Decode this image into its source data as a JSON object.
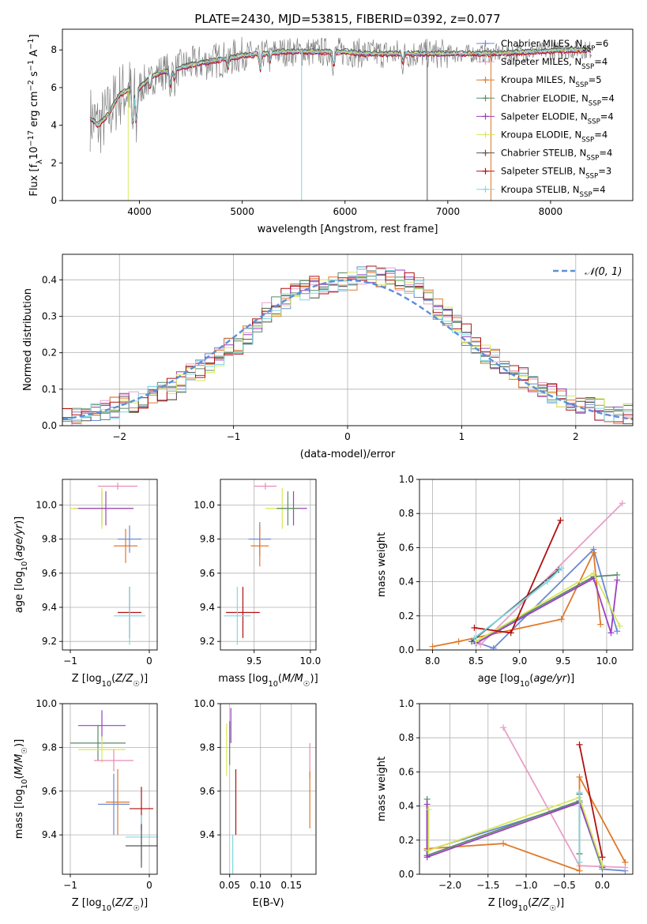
{
  "figure_title": "PLATE=2430, MJD=53815, FIBERID=0392, z=0.077",
  "colors": {
    "Chabrier MILES": "#6a89d6",
    "Salpeter MILES": "#e8a0c8",
    "Kroupa MILES": "#e0792a",
    "Chabrier ELODIE": "#5a8a6a",
    "Salpeter ELODIE": "#9b3fbf",
    "Kroupa ELODIE": "#d8e85a",
    "Chabrier STELIB": "#555555",
    "Salpeter STELIB": "#b01010",
    "Kroupa STELIB": "#7fd8e0",
    "gaussian": "#5b8fd8",
    "pink": "#e88ab8"
  },
  "chart_data": [
    {
      "type": "line",
      "xlabel": "wavelength [Angstrom, rest frame]",
      "ylabel": "Flux [f_λ10^-17 erg cm^-2 s^-1 A^-1]",
      "xlim": [
        3250,
        8800
      ],
      "ylim": [
        0,
        9.1
      ],
      "xticks": [
        4000,
        5000,
        6000,
        7000,
        8000
      ],
      "yticks": [
        0,
        2,
        4,
        6,
        8
      ],
      "grid": false,
      "legend_position": "right",
      "legend": [
        {
          "label": "Chabrier MILES, N",
          "sub": "SSP",
          "suffix": "=6"
        },
        {
          "label": "Salpeter MILES, N",
          "sub": "SSP",
          "suffix": "=4"
        },
        {
          "label": "Kroupa MILES, N",
          "sub": "SSP",
          "suffix": "=5"
        },
        {
          "label": "Chabrier ELODIE, N",
          "sub": "SSP",
          "suffix": "=4"
        },
        {
          "label": "Salpeter ELODIE, N",
          "sub": "SSP",
          "suffix": "=4"
        },
        {
          "label": "Kroupa ELODIE, N",
          "sub": "SSP",
          "suffix": "=4"
        },
        {
          "label": "Chabrier STELIB, N",
          "sub": "SSP",
          "suffix": "=4"
        },
        {
          "label": "Salpeter STELIB, N",
          "sub": "SSP",
          "suffix": "=3"
        },
        {
          "label": "Kroupa STELIB, N",
          "sub": "SSP",
          "suffix": "=4"
        }
      ],
      "spectrum_continuum": [
        [
          3520,
          4.4
        ],
        [
          3600,
          4.0
        ],
        [
          3700,
          4.6
        ],
        [
          3800,
          5.6
        ],
        [
          3900,
          5.9
        ],
        [
          4000,
          6.0
        ],
        [
          4100,
          6.5
        ],
        [
          4200,
          6.8
        ],
        [
          4300,
          6.9
        ],
        [
          4500,
          7.2
        ],
        [
          4800,
          7.5
        ],
        [
          5000,
          7.7
        ],
        [
          5200,
          7.8
        ],
        [
          5400,
          7.9
        ],
        [
          5600,
          7.9
        ],
        [
          5800,
          7.9
        ],
        [
          6000,
          7.9
        ],
        [
          6200,
          7.8
        ],
        [
          6400,
          7.8
        ],
        [
          6600,
          7.8
        ],
        [
          6800,
          7.8
        ],
        [
          7000,
          7.8
        ],
        [
          7200,
          7.8
        ],
        [
          7400,
          7.8
        ],
        [
          7600,
          7.85
        ],
        [
          7800,
          7.9
        ],
        [
          8000,
          7.95
        ],
        [
          8200,
          8.0
        ],
        [
          8400,
          8.0
        ],
        [
          8800,
          8.0
        ]
      ]
    },
    {
      "type": "line",
      "xlabel": "(data-model)/error",
      "ylabel": "Normed distribution",
      "xlim": [
        -2.5,
        2.5
      ],
      "ylim": [
        0,
        0.47
      ],
      "xticks": [
        -2,
        -1,
        0,
        1,
        2
      ],
      "yticks": [
        0.0,
        0.1,
        0.2,
        0.3,
        0.4
      ],
      "grid": true,
      "legend_position": "top-right",
      "legend": [
        "𝒩(0, 1)"
      ],
      "histogram_bin_width": 0.1,
      "histogram_mean": [
        0.02,
        0.025,
        0.03,
        0.04,
        0.045,
        0.05,
        0.06,
        0.065,
        0.075,
        0.085,
        0.09,
        0.1,
        0.12,
        0.14,
        0.15,
        0.17,
        0.19,
        0.21,
        0.22,
        0.25,
        0.28,
        0.31,
        0.33,
        0.35,
        0.36,
        0.37,
        0.38,
        0.385,
        0.39,
        0.395,
        0.4,
        0.41,
        0.42,
        0.41,
        0.405,
        0.4,
        0.39,
        0.38,
        0.35,
        0.32,
        0.3,
        0.28,
        0.25,
        0.22,
        0.2,
        0.18,
        0.16,
        0.14,
        0.13,
        0.11,
        0.1,
        0.09,
        0.075,
        0.065,
        0.055,
        0.05,
        0.045,
        0.04,
        0.035,
        0.03
      ],
      "gaussian": {
        "mean": 0,
        "sigma": 1
      }
    },
    {
      "type": "scatter",
      "xlabel": "Z [log10(Z/Z☉)]",
      "ylabel": "age  [log10(age/yr)]",
      "xlim": [
        -1.1,
        0.1
      ],
      "ylim": [
        9.15,
        10.15
      ],
      "xticks": [
        -1,
        0
      ],
      "yticks": [
        9.2,
        9.4,
        9.6,
        9.8,
        10.0
      ],
      "grid": true,
      "points": [
        {
          "x": -0.6,
          "y": 9.98,
          "xerr": 0.35,
          "yerr": 0.1,
          "series": "Chabrier ELODIE"
        },
        {
          "x": -0.6,
          "y": 9.98,
          "xerr": 0.4,
          "yerr": 0.12,
          "series": "Kroupa ELODIE"
        },
        {
          "x": -0.55,
          "y": 9.98,
          "xerr": 0.35,
          "yerr": 0.1,
          "series": "Salpeter ELODIE"
        },
        {
          "x": -0.4,
          "y": 10.11,
          "xerr": 0.25,
          "yerr": 0.02,
          "series": "pink"
        },
        {
          "x": -0.3,
          "y": 9.76,
          "xerr": 0.15,
          "yerr": 0.1,
          "series": "Kroupa MILES"
        },
        {
          "x": -0.25,
          "y": 9.8,
          "xerr": 0.15,
          "yerr": 0.08,
          "series": "Chabrier MILES"
        },
        {
          "x": -0.25,
          "y": 9.37,
          "xerr": 0.15,
          "yerr": 0.15,
          "series": "Salpeter STELIB"
        },
        {
          "x": -0.25,
          "y": 9.35,
          "xerr": 0.2,
          "yerr": 0.17,
          "series": "Kroupa STELIB"
        }
      ]
    },
    {
      "type": "scatter",
      "xlabel": "mass [log10(M/M☉)]",
      "ylabel": "",
      "xlim": [
        9.2,
        10.05
      ],
      "ylim": [
        9.15,
        10.15
      ],
      "xticks": [
        9.5,
        10.0
      ],
      "yticks": [
        9.2,
        9.4,
        9.6,
        9.8,
        10.0
      ],
      "grid": true,
      "points": [
        {
          "x": 9.85,
          "y": 9.98,
          "xerr": 0.12,
          "yerr": 0.1,
          "series": "Salpeter ELODIE"
        },
        {
          "x": 9.75,
          "y": 9.98,
          "xerr": 0.15,
          "yerr": 0.12,
          "series": "Kroupa ELODIE"
        },
        {
          "x": 9.8,
          "y": 9.98,
          "xerr": 0.1,
          "yerr": 0.1,
          "series": "Chabrier ELODIE"
        },
        {
          "x": 9.6,
          "y": 10.11,
          "xerr": 0.1,
          "yerr": 0.02,
          "series": "pink"
        },
        {
          "x": 9.55,
          "y": 9.8,
          "xerr": 0.1,
          "yerr": 0.1,
          "series": "Chabrier MILES"
        },
        {
          "x": 9.55,
          "y": 9.76,
          "xerr": 0.08,
          "yerr": 0.12,
          "series": "Kroupa MILES"
        },
        {
          "x": 9.4,
          "y": 9.37,
          "xerr": 0.15,
          "yerr": 0.15,
          "series": "Salpeter STELIB"
        },
        {
          "x": 9.35,
          "y": 9.35,
          "xerr": 0.12,
          "yerr": 0.17,
          "series": "Kroupa STELIB"
        }
      ]
    },
    {
      "type": "line",
      "xlabel": "age  [log10(age/yr)]",
      "ylabel": "mass weight",
      "xlim": [
        7.85,
        10.3
      ],
      "ylim": [
        0,
        1.0
      ],
      "xticks": [
        8.0,
        8.5,
        9.0,
        9.5,
        10.0
      ],
      "yticks": [
        0.0,
        0.2,
        0.4,
        0.6,
        0.8,
        1.0
      ],
      "grid": true,
      "series": [
        {
          "name": "Chabrier MILES",
          "points": [
            [
              8.48,
              0.05
            ],
            [
              8.7,
              0.01
            ],
            [
              9.85,
              0.59
            ],
            [
              10.12,
              0.11
            ]
          ]
        },
        {
          "name": "Salpeter MILES",
          "points": [
            [
              8.55,
              0.03
            ],
            [
              10.18,
              0.86
            ]
          ]
        },
        {
          "name": "Kroupa MILES",
          "points": [
            [
              8.0,
              0.02
            ],
            [
              8.3,
              0.05
            ],
            [
              9.48,
              0.18
            ],
            [
              9.85,
              0.57
            ],
            [
              9.93,
              0.15
            ]
          ]
        },
        {
          "name": "Chabrier ELODIE",
          "points": [
            [
              8.5,
              0.05
            ],
            [
              9.85,
              0.43
            ],
            [
              10.12,
              0.44
            ]
          ]
        },
        {
          "name": "Salpeter ELODIE",
          "points": [
            [
              8.5,
              0.04
            ],
            [
              9.85,
              0.42
            ],
            [
              10.05,
              0.1
            ],
            [
              10.12,
              0.41
            ]
          ]
        },
        {
          "name": "Kroupa ELODIE",
          "points": [
            [
              8.5,
              0.05
            ],
            [
              9.85,
              0.45
            ],
            [
              10.15,
              0.14
            ]
          ]
        },
        {
          "name": "Chabrier STELIB",
          "points": [
            [
              8.45,
              0.05
            ],
            [
              9.45,
              0.47
            ]
          ]
        },
        {
          "name": "Salpeter STELIB",
          "points": [
            [
              8.48,
              0.13
            ],
            [
              8.9,
              0.1
            ],
            [
              9.47,
              0.76
            ]
          ]
        },
        {
          "name": "Kroupa STELIB",
          "points": [
            [
              8.48,
              0.07
            ],
            [
              9.32,
              0.4
            ],
            [
              9.48,
              0.48
            ]
          ]
        }
      ]
    },
    {
      "type": "scatter",
      "xlabel": "Z [log10(Z/Z☉)]",
      "ylabel": "mass [log10(M/M☉)]",
      "xlim": [
        -1.1,
        0.1
      ],
      "ylim": [
        9.22,
        10.0
      ],
      "xticks": [
        -1,
        0
      ],
      "yticks": [
        9.4,
        9.6,
        9.8,
        10.0
      ],
      "grid": true,
      "points": [
        {
          "x": -0.6,
          "y": 9.9,
          "xerr": 0.3,
          "yerr": 0.07,
          "series": "Salpeter ELODIE"
        },
        {
          "x": -0.65,
          "y": 9.82,
          "xerr": 0.35,
          "yerr": 0.08,
          "series": "Chabrier ELODIE"
        },
        {
          "x": -0.6,
          "y": 9.79,
          "xerr": 0.3,
          "yerr": 0.06,
          "series": "Kroupa ELODIE"
        },
        {
          "x": -0.45,
          "y": 9.74,
          "xerr": 0.25,
          "yerr": 0.05,
          "series": "pink"
        },
        {
          "x": -0.4,
          "y": 9.55,
          "xerr": 0.15,
          "yerr": 0.15,
          "series": "Kroupa MILES"
        },
        {
          "x": -0.45,
          "y": 9.54,
          "xerr": 0.2,
          "yerr": 0.14,
          "series": "Chabrier MILES"
        },
        {
          "x": -0.1,
          "y": 9.52,
          "xerr": 0.15,
          "yerr": 0.1,
          "series": "Salpeter STELIB"
        },
        {
          "x": -0.1,
          "y": 9.39,
          "xerr": 0.2,
          "yerr": 0.1,
          "series": "Kroupa STELIB"
        },
        {
          "x": -0.1,
          "y": 9.35,
          "xerr": 0.2,
          "yerr": 0.1,
          "series": "Chabrier STELIB"
        }
      ]
    },
    {
      "type": "scatter",
      "xlabel": "E(B-V)",
      "ylabel": "",
      "xlim": [
        0.035,
        0.19
      ],
      "ylim": [
        9.22,
        10.0
      ],
      "xticks": [
        0.05,
        0.1,
        0.15
      ],
      "xtick_labels": [
        "0.05",
        "0.10",
        "0.15"
      ],
      "yticks": [
        9.4,
        9.6,
        9.8,
        10.0
      ],
      "grid": true,
      "points": [
        {
          "x": 0.045,
          "y": 9.79,
          "yerr": 0.12,
          "series": "Kroupa ELODIE"
        },
        {
          "x": 0.05,
          "y": 9.82,
          "yerr": 0.1,
          "series": "Chabrier ELODIE"
        },
        {
          "x": 0.052,
          "y": 9.9,
          "yerr": 0.08,
          "series": "Salpeter ELODIE"
        },
        {
          "x": 0.055,
          "y": 9.3,
          "yerr": 0.1,
          "series": "Kroupa STELIB"
        },
        {
          "x": 0.06,
          "y": 9.55,
          "yerr": 0.15,
          "series": "Salpeter STELIB"
        },
        {
          "x": 0.18,
          "y": 9.74,
          "yerr": 0.08,
          "series": "pink"
        },
        {
          "x": 0.18,
          "y": 9.56,
          "yerr": 0.13,
          "series": "Kroupa MILES"
        }
      ]
    },
    {
      "type": "line",
      "xlabel": "Z [log10(Z/Z☉)]",
      "ylabel": "mass weight",
      "xlim": [
        -2.4,
        0.4
      ],
      "ylim": [
        0,
        1.0
      ],
      "xticks": [
        -2.0,
        -1.5,
        -1.0,
        -0.5,
        0.0
      ],
      "yticks": [
        0.0,
        0.2,
        0.4,
        0.6,
        0.8,
        1.0
      ],
      "grid": true,
      "series": [
        {
          "name": "Chabrier MILES",
          "points": [
            [
              -2.3,
              0.14
            ],
            [
              -0.3,
              0.42
            ],
            [
              0.0,
              0.03
            ],
            [
              0.3,
              0.02
            ]
          ]
        },
        {
          "name": "Salpeter MILES",
          "points": [
            [
              -1.3,
              0.86
            ],
            [
              -0.3,
              0.05
            ],
            [
              0.3,
              0.04
            ]
          ]
        },
        {
          "name": "Kroupa MILES",
          "points": [
            [
              -2.3,
              0.15
            ],
            [
              -1.3,
              0.18
            ],
            [
              -0.3,
              0.02
            ],
            [
              -0.3,
              0.57
            ],
            [
              0.3,
              0.07
            ]
          ]
        },
        {
          "name": "Chabrier ELODIE",
          "points": [
            [
              -2.3,
              0.44
            ],
            [
              -2.3,
              0.11
            ],
            [
              -0.3,
              0.43
            ],
            [
              0.0,
              0.04
            ]
          ]
        },
        {
          "name": "Salpeter ELODIE",
          "points": [
            [
              -2.3,
              0.41
            ],
            [
              -2.3,
              0.1
            ],
            [
              -0.3,
              0.42
            ],
            [
              0.0,
              0.05
            ]
          ]
        },
        {
          "name": "Kroupa ELODIE",
          "points": [
            [
              -2.28,
              0.38
            ],
            [
              -2.28,
              0.14
            ],
            [
              -0.3,
              0.45
            ],
            [
              0.0,
              0.05
            ]
          ]
        },
        {
          "name": "Chabrier STELIB",
          "points": [
            [
              -0.3,
              0.47
            ],
            [
              -0.3,
              0.12
            ]
          ]
        },
        {
          "name": "Salpeter STELIB",
          "points": [
            [
              -0.3,
              0.76
            ],
            [
              0.0,
              0.1
            ]
          ]
        },
        {
          "name": "Kroupa STELIB",
          "points": [
            [
              -0.3,
              0.48
            ],
            [
              -0.3,
              0.07
            ]
          ]
        }
      ]
    }
  ]
}
